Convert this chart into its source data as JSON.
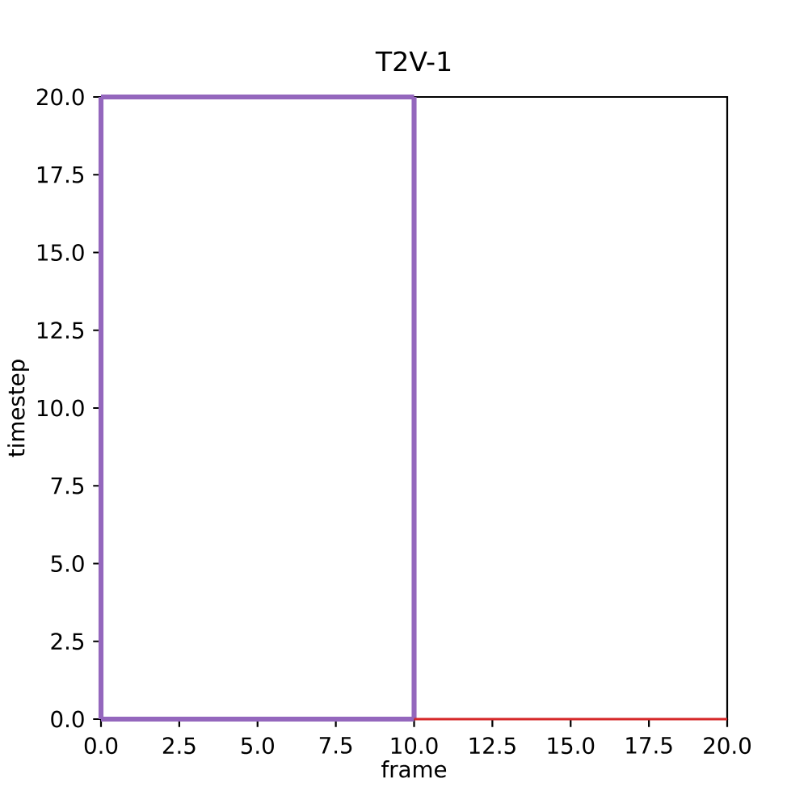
{
  "chart_data": {
    "type": "line",
    "title": "T2V-1",
    "xlabel": "frame",
    "ylabel": "timestep",
    "xlim": [
      0,
      20
    ],
    "ylim": [
      0,
      20
    ],
    "xticks": [
      {
        "value": 0,
        "label": "0.0"
      },
      {
        "value": 2.5,
        "label": "2.5"
      },
      {
        "value": 5,
        "label": "5.0"
      },
      {
        "value": 7.5,
        "label": "7.5"
      },
      {
        "value": 10,
        "label": "10.0"
      },
      {
        "value": 12.5,
        "label": "12.5"
      },
      {
        "value": 15,
        "label": "15.0"
      },
      {
        "value": 17.5,
        "label": "17.5"
      },
      {
        "value": 20,
        "label": "20.0"
      }
    ],
    "yticks": [
      {
        "value": 0,
        "label": "0.0"
      },
      {
        "value": 2.5,
        "label": "2.5"
      },
      {
        "value": 5,
        "label": "5.0"
      },
      {
        "value": 7.5,
        "label": "7.5"
      },
      {
        "value": 10,
        "label": "10.0"
      },
      {
        "value": 12.5,
        "label": "12.5"
      },
      {
        "value": 15,
        "label": "15.0"
      },
      {
        "value": 17.5,
        "label": "17.5"
      },
      {
        "value": 20,
        "label": "20.0"
      }
    ],
    "series": [
      {
        "color": "#9467bd",
        "x": [
          0,
          10
        ],
        "values": [
          0,
          0
        ]
      },
      {
        "color": "#9467bd",
        "x": [
          10,
          10
        ],
        "values": [
          0,
          20
        ]
      },
      {
        "color": "#9467bd",
        "x": [
          10,
          0
        ],
        "values": [
          20,
          20
        ]
      },
      {
        "color": "#9467bd",
        "x": [
          0,
          0
        ],
        "values": [
          20,
          0
        ]
      },
      {
        "color": "#d62728",
        "x": [
          10,
          20
        ],
        "values": [
          0,
          0
        ]
      }
    ]
  }
}
